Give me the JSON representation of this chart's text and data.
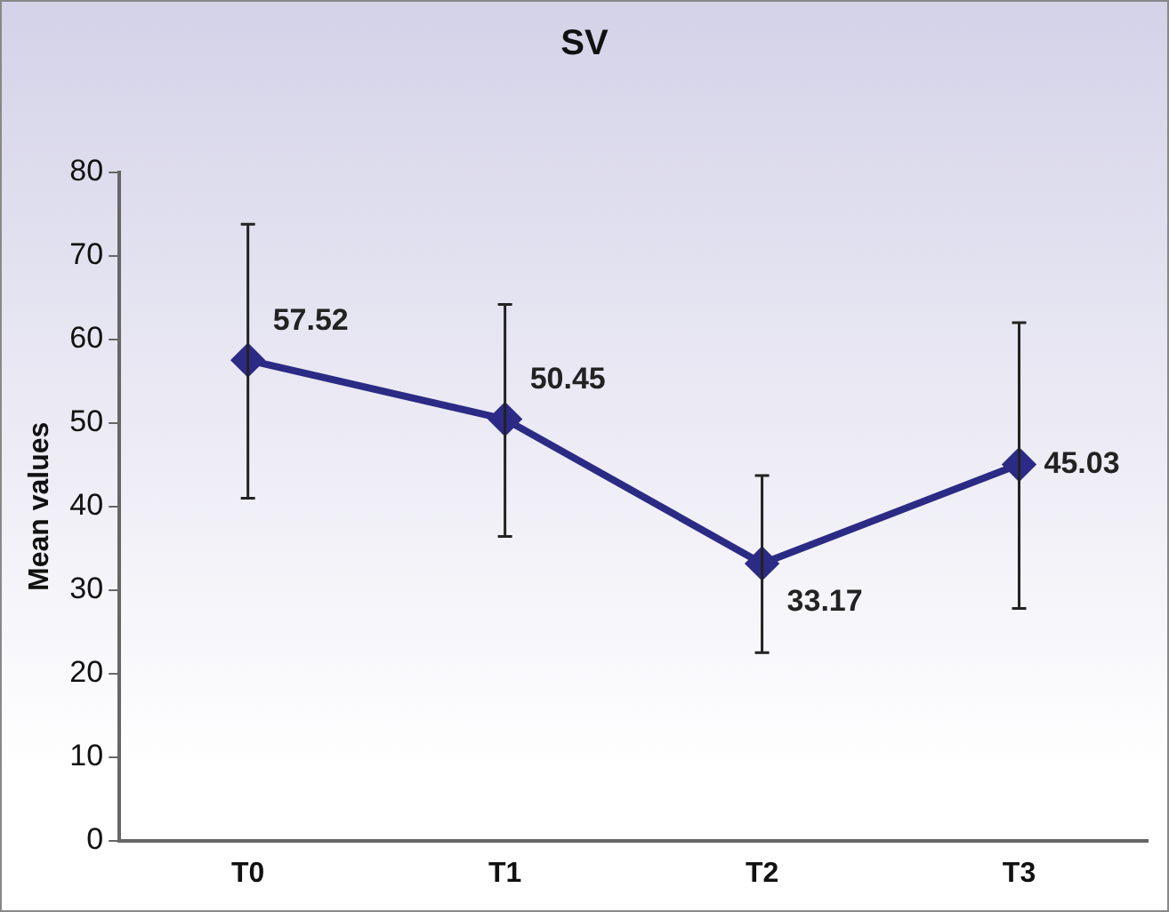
{
  "chart_data": {
    "type": "line",
    "title": "SV",
    "ylabel": "Mean values",
    "categories": [
      "T0",
      "T1",
      "T2",
      "T3"
    ],
    "series": [
      {
        "color": "#2b2b85",
        "values": [
          57.52,
          50.45,
          33.17,
          45.03
        ],
        "errors": [
          [
            41.0,
            73.8
          ],
          [
            36.4,
            64.2
          ],
          [
            22.5,
            43.7
          ],
          [
            27.8,
            62.0
          ]
        ]
      }
    ],
    "ylim": [
      0,
      80
    ],
    "yticks": [
      0,
      10,
      20,
      30,
      40,
      50,
      60,
      70,
      80
    ],
    "grid": false,
    "legend": false,
    "marker": "diamond",
    "line_style": "solid",
    "data_labels": true
  }
}
